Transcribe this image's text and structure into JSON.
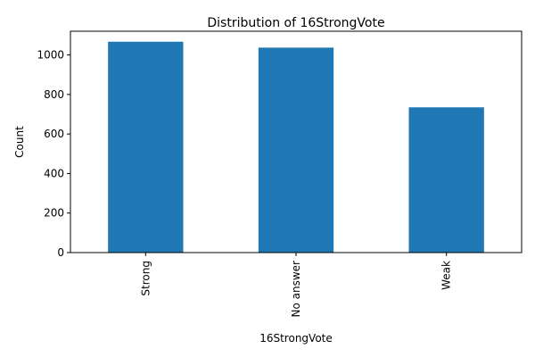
{
  "chart_data": {
    "type": "bar",
    "title": "Distribution of 16StrongVote",
    "xlabel": "16StrongVote",
    "ylabel": "Count",
    "categories": [
      "Strong",
      "No answer",
      "Weak"
    ],
    "values": [
      1067,
      1037,
      735
    ],
    "ylim": [
      0,
      1120
    ],
    "yticks": [
      0,
      200,
      400,
      600,
      800,
      1000
    ],
    "bar_color": "#1f77b4",
    "grid": false,
    "legend": "none"
  }
}
